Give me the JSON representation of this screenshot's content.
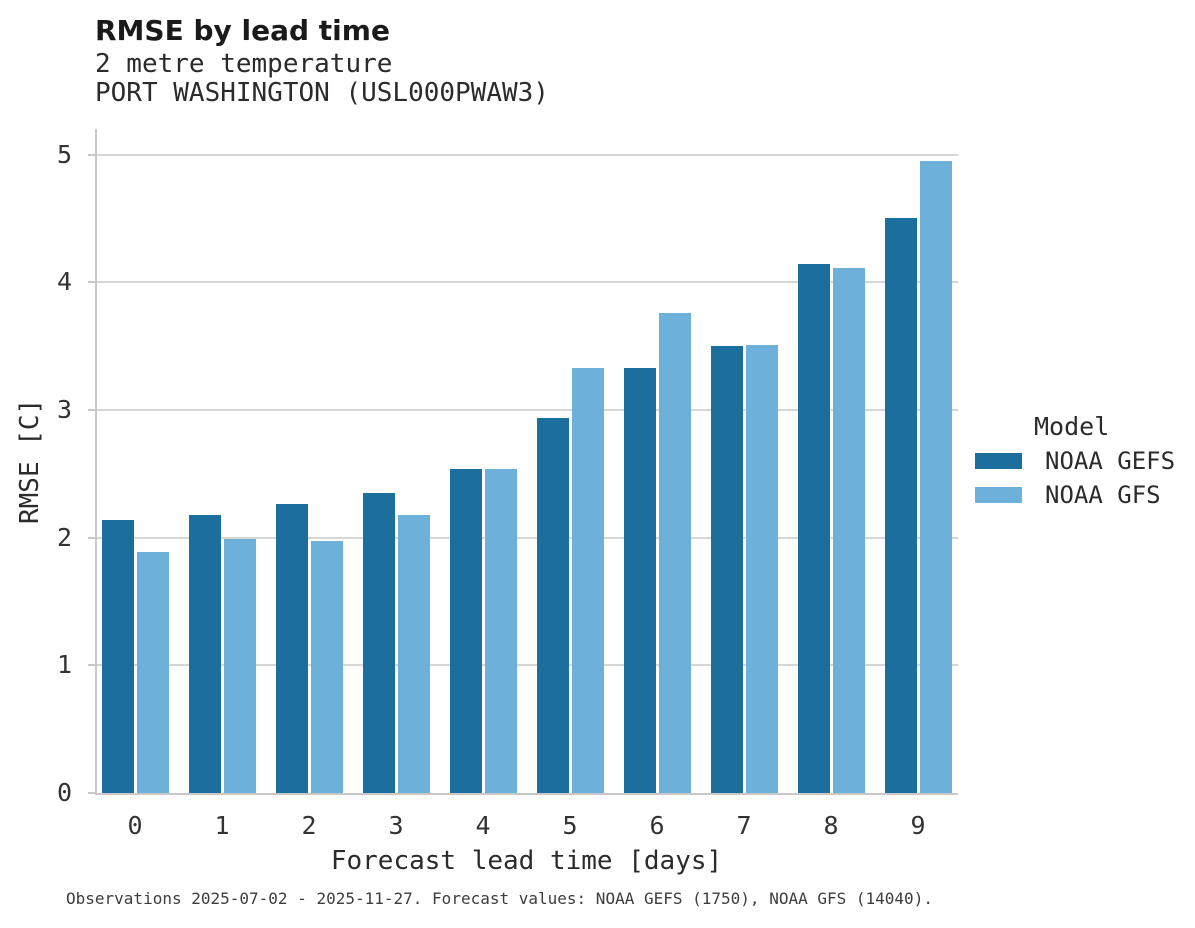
{
  "header": {
    "title": "RMSE by lead time",
    "subtitle1": "2 metre temperature",
    "subtitle2": "PORT WASHINGTON (USL000PWAW3)"
  },
  "chart_data": {
    "type": "bar",
    "title": "RMSE by lead time",
    "subtitle": [
      "2 metre temperature",
      "PORT WASHINGTON (USL000PWAW3)"
    ],
    "categories": [
      "0",
      "1",
      "2",
      "3",
      "4",
      "5",
      "6",
      "7",
      "8",
      "9"
    ],
    "series": [
      {
        "name": "NOAA GEFS",
        "color": "#1c6e9d",
        "values": [
          2.14,
          2.18,
          2.26,
          2.35,
          2.54,
          2.94,
          3.33,
          3.5,
          4.14,
          4.5
        ]
      },
      {
        "name": "NOAA GFS",
        "color": "#6db1da",
        "values": [
          1.89,
          1.99,
          1.97,
          2.18,
          2.54,
          3.33,
          3.76,
          3.51,
          4.11,
          4.95
        ]
      }
    ],
    "xlabel": "Forecast lead time [days]",
    "ylabel": "RMSE [C]",
    "ylim": [
      0,
      5.2
    ],
    "y_ticks": [
      0,
      1,
      2,
      3,
      4,
      5
    ],
    "grid": "horizontal",
    "legend_position": "right"
  },
  "legend": {
    "title": "Model",
    "items": [
      {
        "label": "NOAA GEFS",
        "color": "#1c6e9d"
      },
      {
        "label": "NOAA GFS",
        "color": "#6db1da"
      }
    ]
  },
  "footer": {
    "caption": "Observations 2025-07-02 - 2025-11-27. Forecast values: NOAA GEFS (1750), NOAA GFS (14040)."
  },
  "colors": {
    "background": "#ffffff",
    "spine": "#c8c8c8",
    "gridline": "#d6d6d6",
    "title_text": "#1a1a1a",
    "body_text": "#2b2b2b"
  }
}
